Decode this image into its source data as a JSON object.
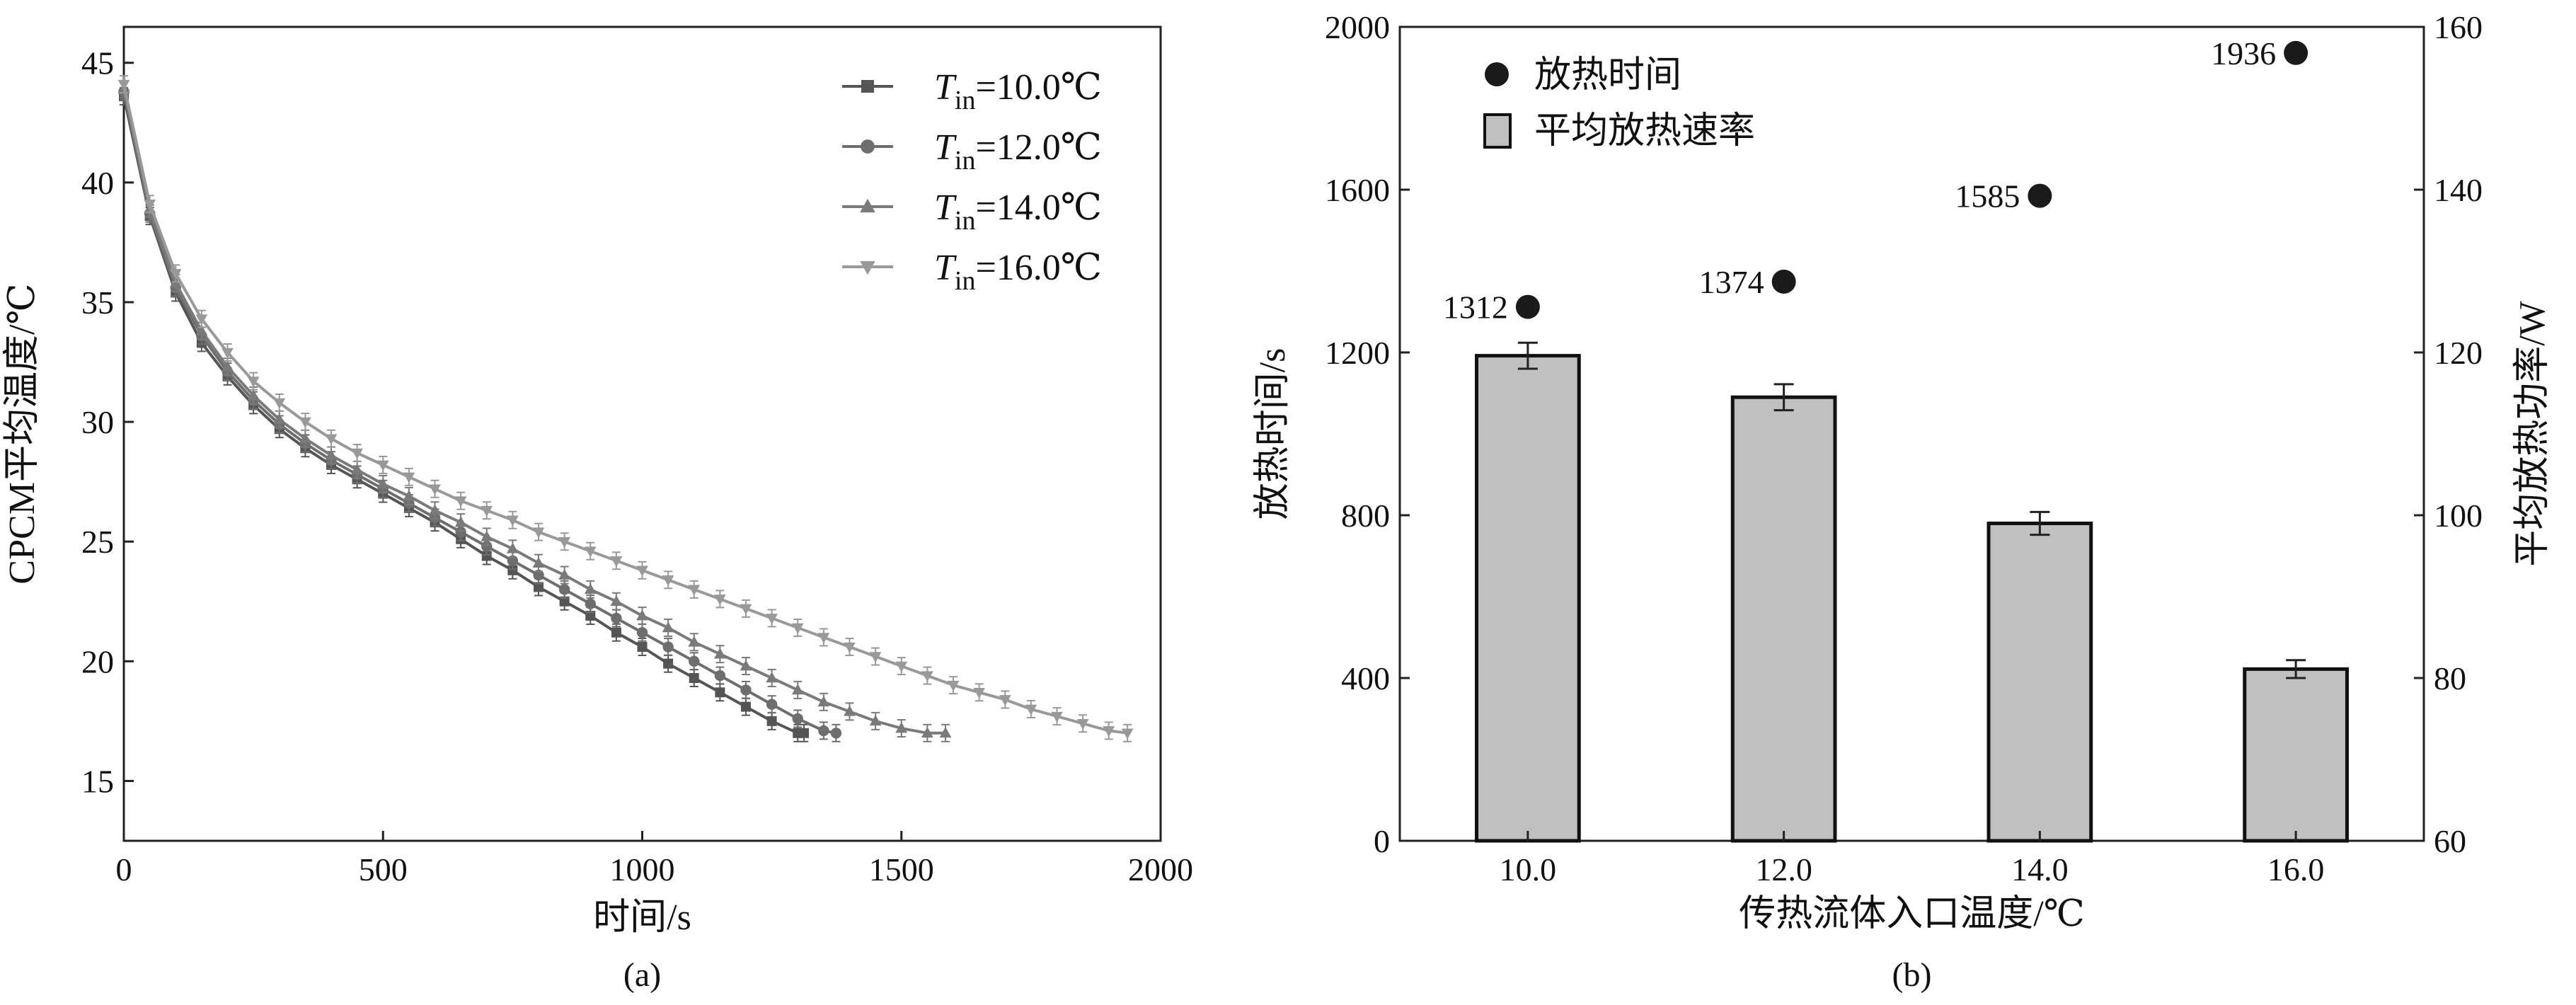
{
  "chart_data": [
    {
      "type": "line",
      "panel_label": "(a)",
      "xlabel": "时间/s",
      "ylabel": "CPCM平均温度/℃",
      "xlim": [
        0,
        2000
      ],
      "ylim": [
        12.5,
        46.5
      ],
      "xticks": [
        "0",
        "500",
        "1000",
        "1500",
        "2000"
      ],
      "yticks": [
        "15",
        "20",
        "25",
        "30",
        "35",
        "40",
        "45"
      ],
      "legend_position": "top-right",
      "grid": false,
      "error_bars": true,
      "series": [
        {
          "name_italic": "T",
          "name_sub": "in",
          "name_rest": "=10.0℃",
          "marker": "square",
          "color": "#555555",
          "x": [
            0,
            50,
            100,
            150,
            200,
            250,
            300,
            350,
            400,
            450,
            500,
            550,
            600,
            650,
            700,
            750,
            800,
            850,
            900,
            950,
            1000,
            1050,
            1100,
            1150,
            1200,
            1250,
            1300,
            1312
          ],
          "y": [
            43.6,
            38.6,
            35.4,
            33.3,
            31.9,
            30.7,
            29.7,
            28.9,
            28.2,
            27.6,
            27.0,
            26.4,
            25.8,
            25.1,
            24.4,
            23.8,
            23.1,
            22.5,
            21.9,
            21.2,
            20.6,
            19.9,
            19.3,
            18.7,
            18.1,
            17.5,
            17.0,
            17.0
          ]
        },
        {
          "name_italic": "T",
          "name_sub": "in",
          "name_rest": "=12.0℃",
          "marker": "circle",
          "color": "#6e6e6e",
          "x": [
            0,
            50,
            100,
            150,
            200,
            250,
            300,
            350,
            400,
            450,
            500,
            550,
            600,
            650,
            700,
            750,
            800,
            850,
            900,
            950,
            1000,
            1050,
            1100,
            1150,
            1200,
            1250,
            1300,
            1350,
            1374
          ],
          "y": [
            43.8,
            38.7,
            35.6,
            33.6,
            32.1,
            30.9,
            29.9,
            29.1,
            28.4,
            27.8,
            27.2,
            26.6,
            26.0,
            25.4,
            24.8,
            24.2,
            23.6,
            23.0,
            22.4,
            21.8,
            21.2,
            20.6,
            20.0,
            19.4,
            18.8,
            18.2,
            17.6,
            17.1,
            17.0
          ]
        },
        {
          "name_italic": "T",
          "name_sub": "in",
          "name_rest": "=14.0℃",
          "marker": "triangle-up",
          "color": "#7a7a7a",
          "x": [
            0,
            50,
            100,
            150,
            200,
            250,
            300,
            350,
            400,
            450,
            500,
            550,
            600,
            650,
            700,
            750,
            800,
            850,
            900,
            950,
            1000,
            1050,
            1100,
            1150,
            1200,
            1250,
            1300,
            1350,
            1400,
            1450,
            1500,
            1550,
            1585
          ],
          "y": [
            43.9,
            38.9,
            35.8,
            33.8,
            32.3,
            31.1,
            30.1,
            29.3,
            28.6,
            28.0,
            27.4,
            26.9,
            26.3,
            25.8,
            25.2,
            24.7,
            24.1,
            23.6,
            23.0,
            22.5,
            21.9,
            21.4,
            20.8,
            20.3,
            19.8,
            19.3,
            18.8,
            18.3,
            17.9,
            17.5,
            17.2,
            17.0,
            17.0
          ]
        },
        {
          "name_italic": "T",
          "name_sub": "in",
          "name_rest": "=16.0℃",
          "marker": "triangle-down",
          "color": "#999999",
          "x": [
            0,
            50,
            100,
            150,
            200,
            250,
            300,
            350,
            400,
            450,
            500,
            550,
            600,
            650,
            700,
            750,
            800,
            850,
            900,
            950,
            1000,
            1050,
            1100,
            1150,
            1200,
            1250,
            1300,
            1350,
            1400,
            1450,
            1500,
            1550,
            1600,
            1650,
            1700,
            1750,
            1800,
            1850,
            1900,
            1936
          ],
          "y": [
            44.1,
            39.1,
            36.2,
            34.3,
            32.9,
            31.7,
            30.8,
            30.0,
            29.3,
            28.7,
            28.2,
            27.7,
            27.2,
            26.7,
            26.3,
            25.9,
            25.4,
            25.0,
            24.6,
            24.2,
            23.8,
            23.4,
            23.0,
            22.6,
            22.2,
            21.8,
            21.4,
            21.0,
            20.6,
            20.2,
            19.8,
            19.4,
            19.0,
            18.7,
            18.4,
            18.0,
            17.7,
            17.4,
            17.1,
            17.0
          ]
        }
      ]
    },
    {
      "type": "bar",
      "panel_label": "(b)",
      "xlabel": "传热流体入口温度/℃",
      "ylabel": "放热时间/s",
      "y2label": "平均放热功率/W",
      "categories": [
        "10.0",
        "12.0",
        "14.0",
        "16.0"
      ],
      "ylim": [
        0,
        2000
      ],
      "yticks": [
        "0",
        "400",
        "800",
        "1200",
        "1600",
        "2000"
      ],
      "y2lim": [
        60,
        160
      ],
      "y2ticks": [
        "60",
        "80",
        "100",
        "120",
        "140",
        "160"
      ],
      "legend_position": "top-left",
      "grid": false,
      "bar_series": {
        "name": "平均放热速率",
        "axis": "right",
        "color": "#c0c0c0",
        "values": [
          119.6,
          114.5,
          99.0,
          81.1
        ],
        "errors": [
          1.6,
          1.6,
          1.4,
          1.1
        ]
      },
      "point_series": {
        "name": "放热时间",
        "axis": "left",
        "color": "#1a1a1a",
        "values": [
          1312,
          1374,
          1585,
          1936
        ],
        "labels": [
          "1312",
          "1374",
          "1585",
          "1936"
        ]
      }
    }
  ]
}
